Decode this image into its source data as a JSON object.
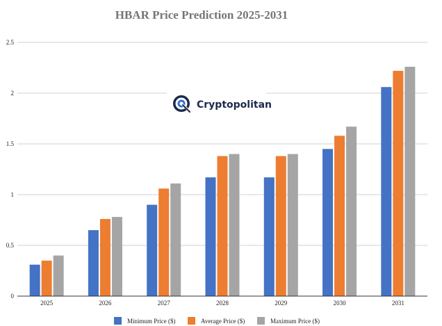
{
  "chart_data": {
    "type": "bar",
    "title": "HBAR Price Prediction 2025-2031",
    "xlabel": "",
    "ylabel": "",
    "categories": [
      "2025",
      "2026",
      "2027",
      "2028",
      "2029",
      "2030",
      "2031"
    ],
    "series": [
      {
        "name": "Minimum Price ($)",
        "color": "#4472c4",
        "values": [
          0.31,
          0.65,
          0.9,
          1.17,
          1.17,
          1.45,
          2.06
        ]
      },
      {
        "name": "Average Price ($)",
        "color": "#ed7d31",
        "values": [
          0.35,
          0.76,
          1.06,
          1.38,
          1.38,
          1.58,
          2.22
        ]
      },
      {
        "name": "Maximum Price ($)",
        "color": "#a5a5a5",
        "values": [
          0.4,
          0.78,
          1.11,
          1.4,
          1.4,
          1.67,
          2.26
        ]
      }
    ],
    "ylim": [
      0,
      2.5
    ],
    "yticks": [
      "0",
      "0.5",
      "1",
      "1.5",
      "2",
      "2.5"
    ],
    "grid": true,
    "legend_position": "bottom"
  },
  "watermark": {
    "text": "Cryptopolitan",
    "icon": "cryptopolitan-logo-icon"
  }
}
